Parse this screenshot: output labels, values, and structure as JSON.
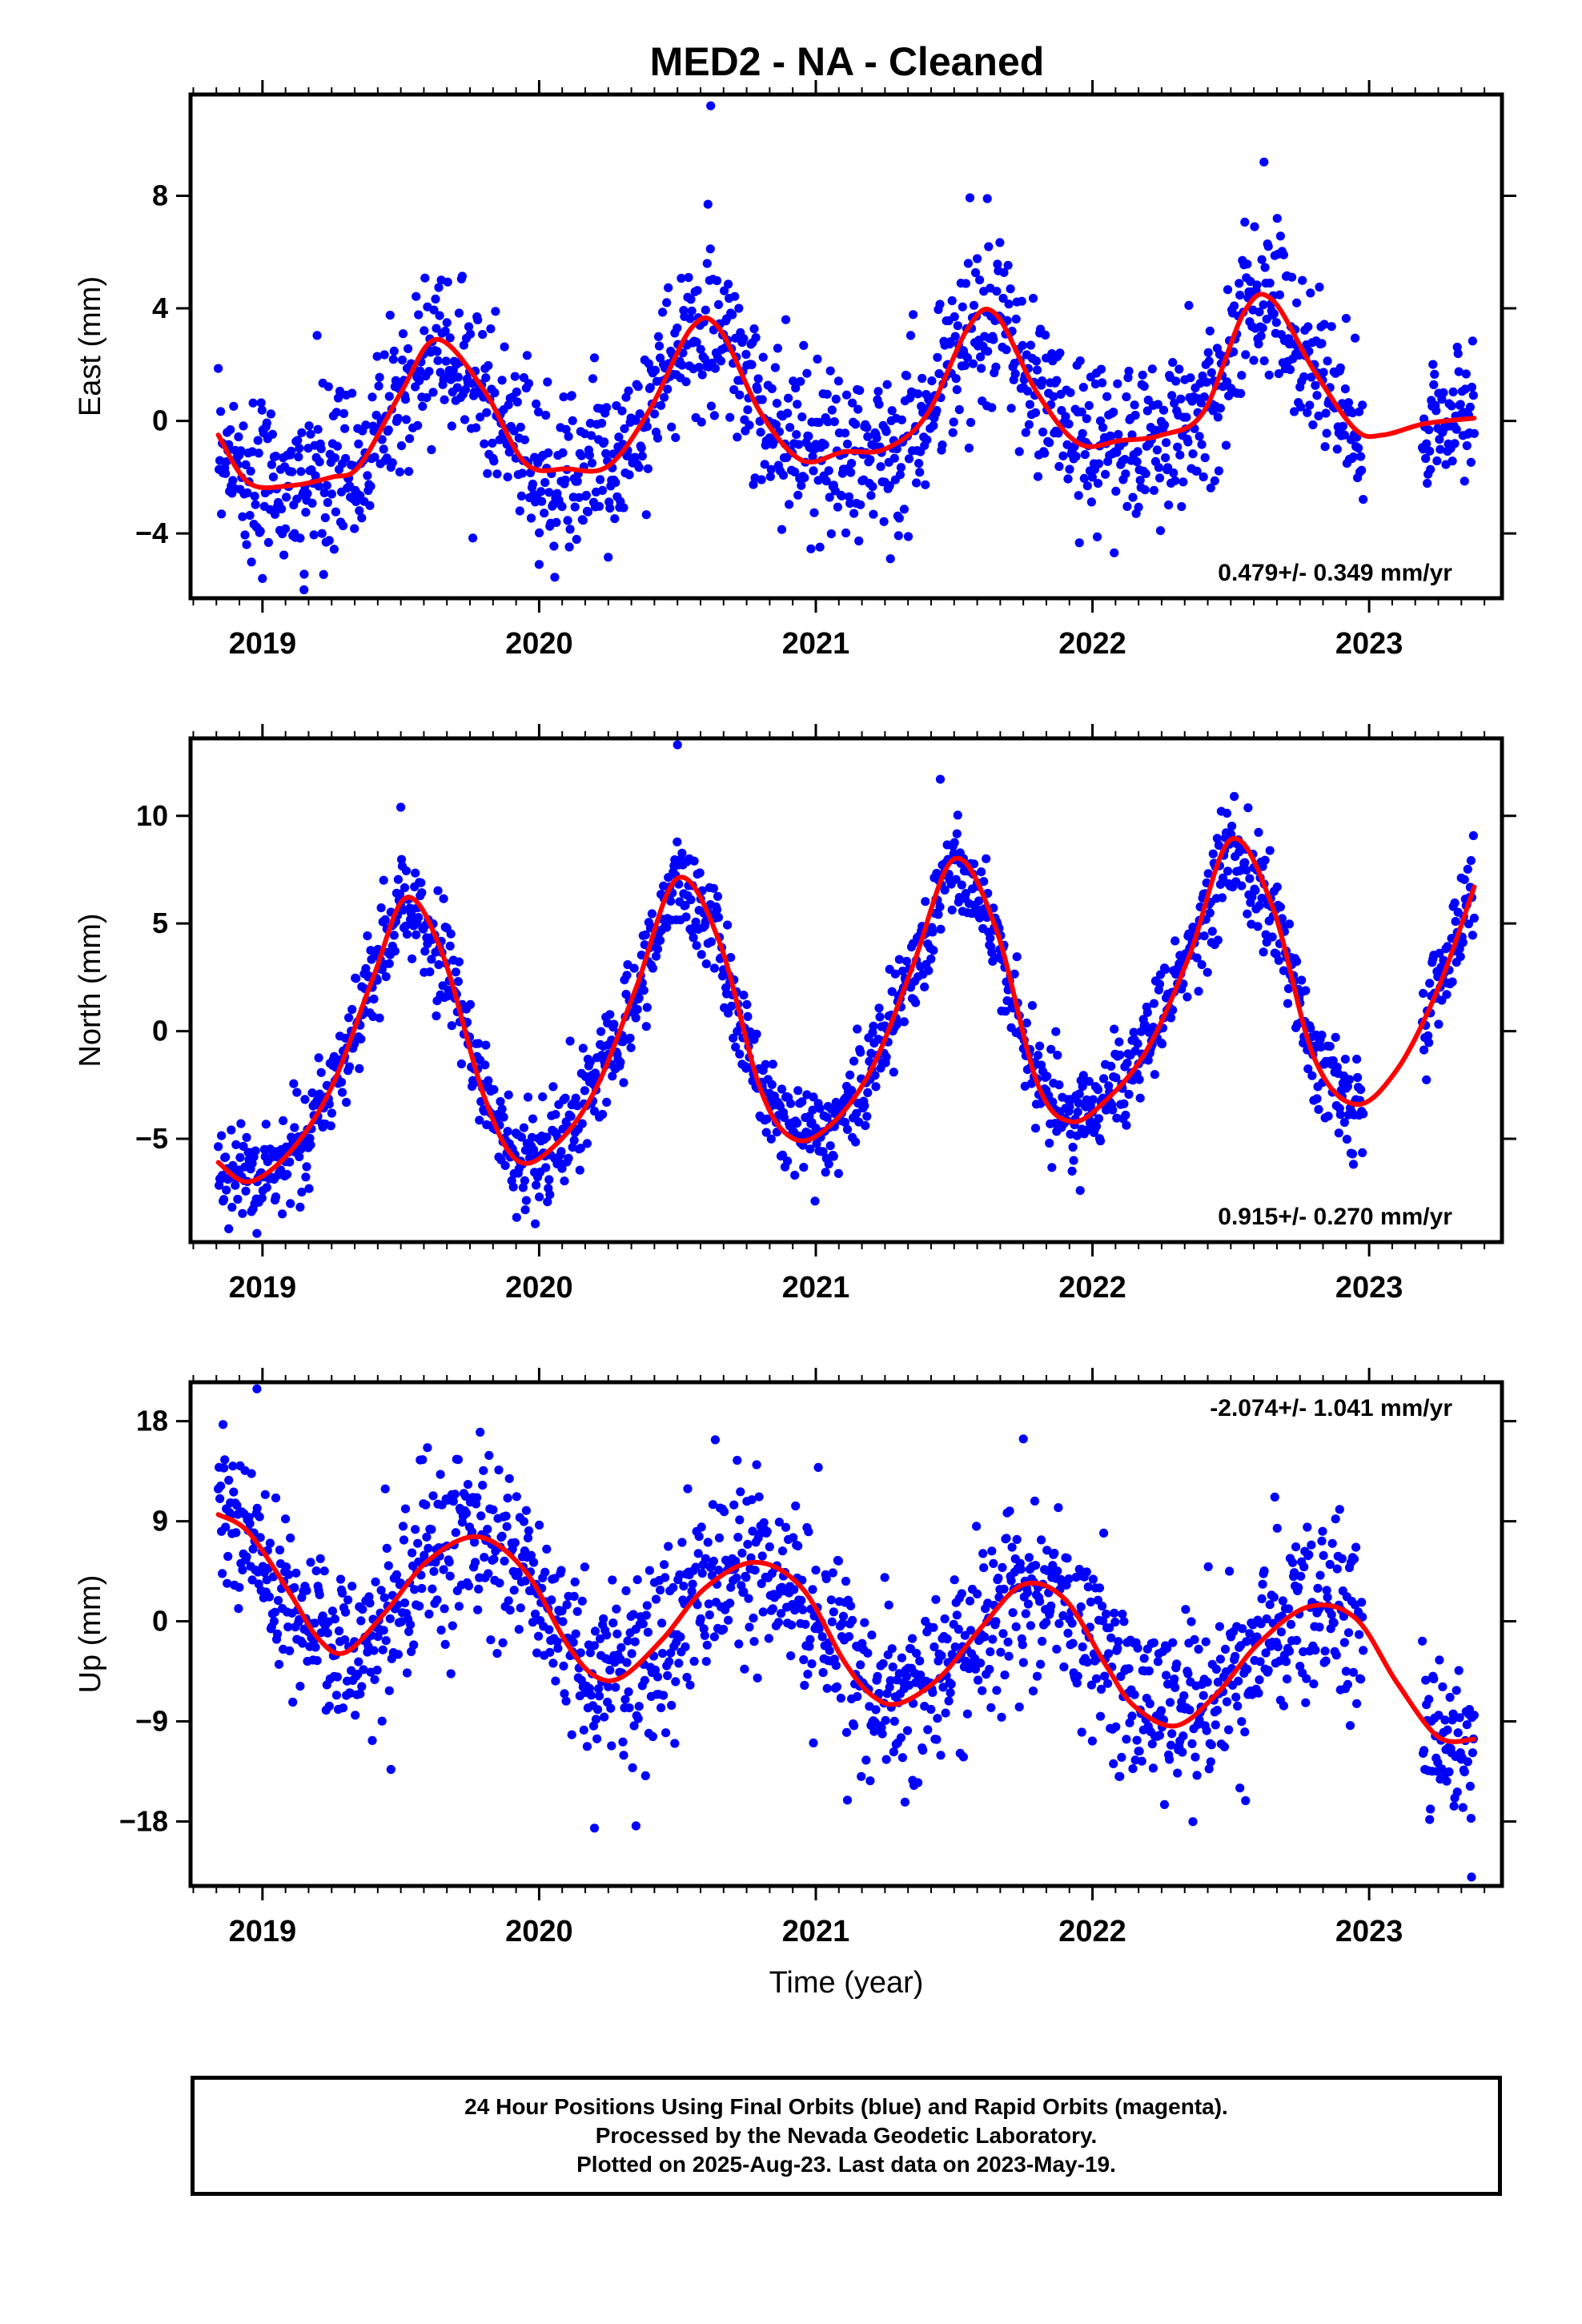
{
  "title": "MED2  - NA - Cleaned",
  "colors": {
    "points": "#0000ff",
    "fit": "#ff0000",
    "axes": "#000000"
  },
  "footer": {
    "line1": "24 Hour Positions Using Final Orbits (blue) and Rapid Orbits (magenta).",
    "line2": "Processed by the Nevada Geodetic Laboratory.",
    "line3": "Plotted on 2025-Aug-23. Last data on 2023-May-19."
  },
  "chart_data": [
    {
      "type": "scatter",
      "component": "east",
      "ylabel": "East (mm)",
      "xlabel": "",
      "xlim": [
        2018.74,
        2023.48
      ],
      "ylim": [
        -6.3,
        11.6
      ],
      "yticks": [
        -4,
        0,
        4,
        8
      ],
      "yticklabels": [
        "−4",
        "0",
        "4",
        "8"
      ],
      "xticks": [
        2019,
        2020,
        2021,
        2022,
        2023
      ],
      "xticklabels": [
        "2019",
        "2020",
        "2021",
        "2022",
        "2023"
      ],
      "rate_label": "0.479+/- 0.349 mm/yr",
      "rate_position": "bottom-right",
      "data_start": 2018.84,
      "data_end": 2023.38,
      "data_gap": [
        2022.98,
        2023.19
      ],
      "points_count": 1550,
      "noise_sd": 1.45,
      "outliers": [
        [
          2020.62,
          11.2
        ],
        [
          2021.62,
          7.9
        ],
        [
          2022.62,
          9.2
        ],
        [
          2019.0,
          -5.6
        ],
        [
          2020.0,
          -5.1
        ],
        [
          2019.15,
          -6.0
        ]
      ],
      "fit": {
        "x": [
          2018.84,
          2018.95,
          2019.1,
          2019.25,
          2019.35,
          2019.5,
          2019.63,
          2019.8,
          2019.95,
          2020.1,
          2020.25,
          2020.4,
          2020.55,
          2020.65,
          2020.8,
          2020.95,
          2021.1,
          2021.25,
          2021.4,
          2021.55,
          2021.65,
          2021.8,
          2021.95,
          2022.1,
          2022.25,
          2022.4,
          2022.55,
          2022.65,
          2022.8,
          2022.95,
          2023.05,
          2023.2,
          2023.38
        ],
        "y": [
          -0.5,
          -2.2,
          -2.3,
          -2.0,
          -1.6,
          1.0,
          2.9,
          1.1,
          -1.5,
          -1.7,
          -1.6,
          0.4,
          3.3,
          3.3,
          0.3,
          -1.4,
          -1.1,
          -1.0,
          0.2,
          3.3,
          3.8,
          1.0,
          -0.8,
          -0.7,
          -0.5,
          0.3,
          3.9,
          4.3,
          1.8,
          -0.3,
          -0.5,
          -0.1,
          0.1
        ]
      }
    },
    {
      "type": "scatter",
      "component": "north",
      "ylabel": "North (mm)",
      "xlabel": "",
      "xlim": [
        2018.74,
        2023.48
      ],
      "ylim": [
        -9.8,
        13.6
      ],
      "yticks": [
        -5,
        0,
        5,
        10
      ],
      "yticklabels": [
        "−5",
        "0",
        "5",
        "10"
      ],
      "xticks": [
        2019,
        2020,
        2021,
        2022,
        2023
      ],
      "xticklabels": [
        "2019",
        "2020",
        "2021",
        "2022",
        "2023"
      ],
      "rate_label": "0.915+/- 0.270 mm/yr",
      "rate_position": "bottom-right",
      "data_start": 2018.84,
      "data_end": 2023.38,
      "data_gap": [
        2022.98,
        2023.19
      ],
      "points_count": 1550,
      "noise_sd": 1.15,
      "outliers": [
        [
          2020.5,
          13.3
        ],
        [
          2021.45,
          11.7
        ],
        [
          2019.5,
          10.4
        ],
        [
          2018.98,
          -9.4
        ],
        [
          2019.95,
          -8.3
        ]
      ],
      "fit": {
        "x": [
          2018.84,
          2018.95,
          2019.1,
          2019.25,
          2019.4,
          2019.52,
          2019.65,
          2019.8,
          2019.92,
          2020.05,
          2020.2,
          2020.35,
          2020.5,
          2020.65,
          2020.8,
          2020.92,
          2021.05,
          2021.2,
          2021.35,
          2021.5,
          2021.65,
          2021.8,
          2021.92,
          2022.05,
          2022.2,
          2022.35,
          2022.5,
          2022.65,
          2022.8,
          2022.95,
          2023.1,
          2023.25,
          2023.38
        ],
        "y": [
          -6.1,
          -7.0,
          -5.6,
          -2.6,
          2.5,
          6.2,
          3.6,
          -3.0,
          -6.0,
          -5.4,
          -2.8,
          2.0,
          7.1,
          4.2,
          -2.7,
          -5.0,
          -4.4,
          -1.8,
          3.0,
          8.0,
          4.8,
          -2.4,
          -4.2,
          -3.2,
          -0.8,
          3.5,
          8.9,
          5.8,
          -1.2,
          -3.4,
          -1.8,
          2.0,
          6.7
        ]
      }
    },
    {
      "type": "scatter",
      "component": "up",
      "ylabel": "Up (mm)",
      "xlabel": "Time (year)",
      "xlim": [
        2018.74,
        2023.48
      ],
      "ylim": [
        -23.8,
        21.5
      ],
      "yticks": [
        -18,
        -9,
        0,
        9,
        18
      ],
      "yticklabels": [
        "−18",
        "−9",
        "0",
        "9",
        "18"
      ],
      "xticks": [
        2019,
        2020,
        2021,
        2022,
        2023
      ],
      "xticklabels": [
        "2019",
        "2020",
        "2021",
        "2022",
        "2023"
      ],
      "rate_label": "-2.074+/- 1.041 mm/yr",
      "rate_position": "top-right",
      "data_start": 2018.84,
      "data_end": 2023.38,
      "data_gap": [
        2022.98,
        2023.19
      ],
      "points_count": 1550,
      "noise_sd": 4.1,
      "outliers": [
        [
          2018.98,
          20.9
        ],
        [
          2020.2,
          -18.6
        ],
        [
          2020.35,
          -18.4
        ],
        [
          2023.37,
          -23.0
        ],
        [
          2021.75,
          16.4
        ],
        [
          2021.35,
          -14.3
        ]
      ],
      "fit": {
        "x": [
          2018.84,
          2018.95,
          2019.1,
          2019.2,
          2019.3,
          2019.45,
          2019.6,
          2019.78,
          2019.95,
          2020.1,
          2020.2,
          2020.3,
          2020.45,
          2020.6,
          2020.78,
          2020.95,
          2021.1,
          2021.2,
          2021.3,
          2021.45,
          2021.6,
          2021.75,
          2021.9,
          2022.05,
          2022.15,
          2022.3,
          2022.45,
          2022.6,
          2022.78,
          2022.95,
          2023.1,
          2023.25,
          2023.38
        ],
        "y": [
          9.6,
          8.0,
          2.5,
          -1.5,
          -2.8,
          1.0,
          5.5,
          7.6,
          4.5,
          -2.0,
          -4.9,
          -5.0,
          -1.5,
          3.0,
          5.3,
          3.0,
          -3.5,
          -6.6,
          -7.4,
          -5.0,
          -0.5,
          3.3,
          2.0,
          -4.0,
          -7.6,
          -9.4,
          -6.5,
          -2.0,
          1.3,
          0.3,
          -5.5,
          -10.4,
          -10.6
        ]
      }
    }
  ]
}
